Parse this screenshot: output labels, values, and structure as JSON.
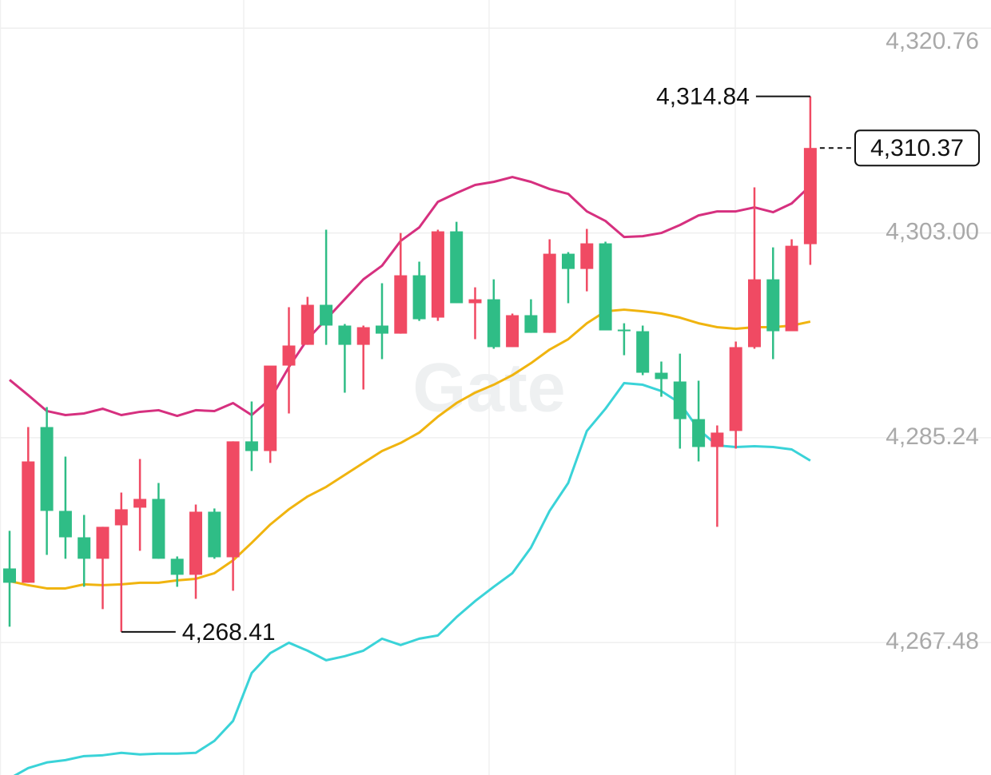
{
  "chart_data": {
    "type": "candlestick",
    "watermark": "Gate",
    "up_color": "#f04a63",
    "down_color": "#2fbd86",
    "open": [
      4273.91,
      4272.67,
      4286.17,
      4278.9,
      4276.61,
      4274.75,
      4277.65,
      4279.18,
      4279.94,
      4274.75,
      4273.36,
      4278.83,
      4274.88,
      4284.93,
      4284.09,
      4291.5,
      4293.3,
      4296.77,
      4294.97,
      4293.3,
      4294.97,
      4294.27,
      4299.33,
      4295.66,
      4303.14,
      4296.91,
      4297.25,
      4293.1,
      4295.87,
      4294.34,
      4301.2,
      4299.88,
      4302.1,
      4294.62,
      4294.48,
      4290.88,
      4290.12,
      4286.86,
      4284.44,
      4285.83,
      4293.1,
      4298.98,
      4294.48,
      4302.03
    ],
    "high": [
      4277.17,
      4286.17,
      4287.9,
      4283.61,
      4278.55,
      4277.52,
      4280.49,
      4283.4,
      4281.32,
      4274.95,
      4279.45,
      4279.11,
      4284.93,
      4288.39,
      4291.37,
      4296.56,
      4297.46,
      4303.28,
      4295.11,
      4294.97,
      4298.64,
      4303.0,
      4300.51,
      4303.28,
      4303.97,
      4298.29,
      4298.98,
      4296.01,
      4297.25,
      4302.45,
      4301.34,
      4303.35,
      4302.24,
      4295.17,
      4294.97,
      4291.85,
      4292.54,
      4290.19,
      4286.31,
      4293.58,
      4306.95,
      4301.75,
      4302.45,
      4314.84
    ],
    "low": [
      4268.86,
      4272.67,
      4275.09,
      4274.75,
      4272.32,
      4270.38,
      4268.41,
      4275.44,
      4274.75,
      4272.32,
      4271.28,
      4274.75,
      4271.98,
      4282.36,
      4283.06,
      4287.35,
      4293.3,
      4293.3,
      4289.15,
      4289.43,
      4292.06,
      4294.27,
      4295.38,
      4295.38,
      4296.91,
      4293.79,
      4292.96,
      4293.1,
      4294.34,
      4294.34,
      4296.91,
      4297.94,
      4294.55,
      4292.4,
      4290.67,
      4288.8,
      4284.3,
      4283.19,
      4277.52,
      4284.3,
      4292.96,
      4292.06,
      4294.48,
      4300.23
    ],
    "close": [
      4272.67,
      4283.19,
      4278.9,
      4276.61,
      4274.75,
      4277.52,
      4279.04,
      4279.94,
      4274.75,
      4273.36,
      4278.83,
      4274.88,
      4284.93,
      4284.09,
      4291.5,
      4293.24,
      4296.77,
      4294.97,
      4293.3,
      4294.83,
      4294.27,
      4299.33,
      4295.52,
      4303.14,
      4296.91,
      4297.25,
      4293.1,
      4295.87,
      4294.34,
      4301.2,
      4299.88,
      4302.1,
      4294.55,
      4294.48,
      4290.88,
      4290.33,
      4286.86,
      4284.44,
      4285.69,
      4293.1,
      4298.98,
      4294.48,
      4301.89,
      4310.37
    ],
    "series": [
      {
        "color": "#d6307f",
        "values": [
          4290.26,
          4288.94,
          4287.56,
          4287.21,
          4287.35,
          4287.76,
          4287.21,
          4287.49,
          4287.63,
          4287.14,
          4287.63,
          4287.56,
          4288.25,
          4287.21,
          4288.6,
          4291.37,
          4293.79,
          4295.52,
          4297.25,
          4298.98,
          4300.16,
          4302.31,
          4303.48,
          4305.7,
          4306.46,
          4307.16,
          4307.43,
          4307.85,
          4307.43,
          4306.81,
          4306.39,
          4304.87,
          4304.04,
          4302.65,
          4302.72,
          4303.0,
          4303.69,
          4304.52,
          4304.87,
          4304.87,
          4305.22,
          4304.8,
          4305.56,
          4307.09
        ]
      },
      {
        "color": "#f0b40f",
        "values": [
          4272.81,
          4272.46,
          4272.18,
          4272.18,
          4272.53,
          4272.46,
          4272.53,
          4272.67,
          4272.67,
          4272.88,
          4273.01,
          4273.5,
          4274.61,
          4276.13,
          4277.72,
          4279.04,
          4280.15,
          4280.98,
          4282.02,
          4283.06,
          4284.09,
          4284.79,
          4285.69,
          4287.07,
          4288.25,
          4289.15,
          4289.84,
          4290.67,
          4291.71,
          4292.89,
          4293.79,
          4295.17,
          4296.21,
          4296.35,
          4296.21,
          4296.01,
          4295.66,
          4295.17,
          4294.83,
          4294.69,
          4294.83,
          4294.83,
          4294.97,
          4295.31
        ]
      },
      {
        "color": "#3ad3d8",
        "values": [
          4255.7,
          4256.6,
          4257.09,
          4257.29,
          4257.64,
          4257.71,
          4257.92,
          4257.78,
          4257.85,
          4257.85,
          4257.92,
          4258.96,
          4260.69,
          4264.84,
          4266.57,
          4267.47,
          4266.78,
          4265.95,
          4266.3,
          4266.78,
          4267.82,
          4267.27,
          4267.82,
          4268.1,
          4269.69,
          4271.08,
          4272.32,
          4273.5,
          4275.72,
          4278.9,
          4281.32,
          4285.83,
          4287.76,
          4289.98,
          4289.84,
          4289.29,
          4288.25,
          4285.96,
          4284.58,
          4284.44,
          4284.51,
          4284.44,
          4284.23,
          4283.26
        ]
      }
    ],
    "ylim": [
      4256.0,
      4323.2
    ],
    "yticks": [
      {
        "value": 4320.76,
        "label": "4,320.76"
      },
      {
        "value": 4303.0,
        "label": "4,303.00"
      },
      {
        "value": 4285.24,
        "label": "4,285.24"
      },
      {
        "value": 4267.48,
        "label": "4,267.48"
      }
    ],
    "grid": true,
    "annotations": [
      {
        "value": 4314.84,
        "label": "4,314.84"
      },
      {
        "value": 4268.41,
        "label": "4,268.41"
      }
    ],
    "last_price": {
      "value": 4310.37,
      "label": "4,310.37"
    }
  }
}
